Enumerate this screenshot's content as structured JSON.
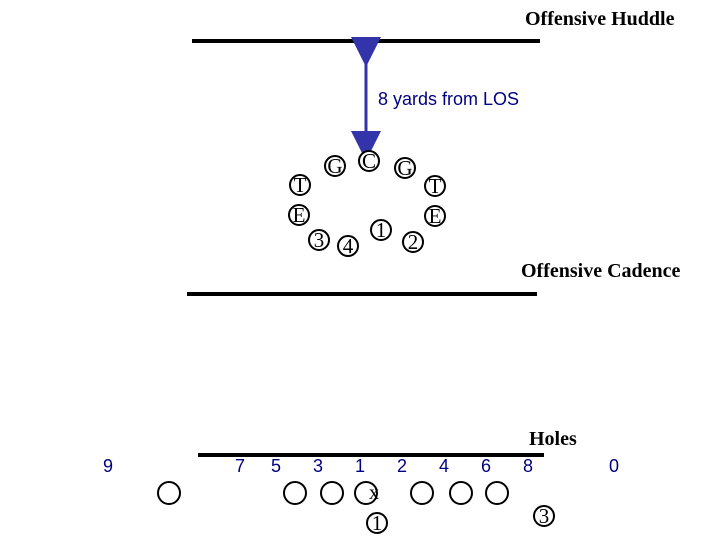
{
  "huddle": {
    "title": "Offensive Huddle",
    "distance_label": "8 yards from LOS",
    "players": {
      "center": "C",
      "guard_left": "G",
      "guard_right": "G",
      "tackle_left": "T",
      "tackle_right": "T",
      "end_left": "E",
      "end_right": "E",
      "back_3": "3",
      "back_4": "4",
      "back_1": "1",
      "back_2": "2"
    },
    "colors": {
      "arrow": "#3333aa",
      "text_accent": "#000080"
    }
  },
  "cadence": {
    "title": "Offensive Cadence"
  },
  "holes": {
    "title": "Holes",
    "numbers": [
      "9",
      "7",
      "5",
      "3",
      "1",
      "2",
      "4",
      "6",
      "8",
      "0"
    ],
    "center_mark": "x",
    "qb_number": "1",
    "back_number": "3"
  }
}
